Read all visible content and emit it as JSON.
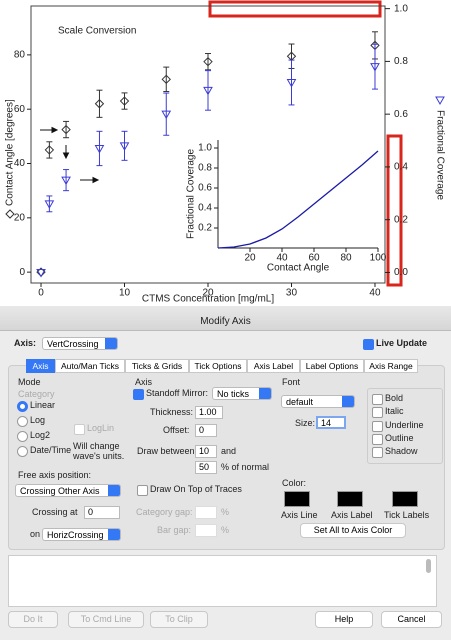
{
  "chart_data": [
    {
      "type": "scatter",
      "annotation": "Scale Conversion",
      "x_label": "CTMS Concentration [mg/mL]",
      "y_label": "Contact Angle [degrees]",
      "y2_label": "Fractional Coverage",
      "xlim": [
        -1.2,
        41.2
      ],
      "xticks": [
        0,
        10,
        20,
        30,
        40
      ],
      "ylim": [
        -4,
        98
      ],
      "yticks": [
        0,
        20,
        40,
        60,
        80
      ],
      "y2lim": [
        -0.04,
        1.01
      ],
      "y2ticks": [
        {
          "value": 0,
          "label": "0.0"
        },
        {
          "value": 0.2,
          "label": "0.2"
        },
        {
          "value": 0.4,
          "label": "0.4"
        },
        {
          "value": 0.6,
          "label": "0.6"
        },
        {
          "value": 0.8,
          "label": "0.8"
        },
        {
          "value": 1,
          "label": "1.0"
        }
      ],
      "series": [
        {
          "color": "#333333",
          "marker": "diamond",
          "x": [
            0,
            1,
            3,
            7,
            10,
            15,
            20,
            30,
            40
          ],
          "values": [
            0,
            45,
            52.5,
            62,
            63,
            71,
            77.5,
            79.5,
            83.5
          ],
          "errors": [
            0,
            3,
            3,
            5,
            3,
            4.5,
            3,
            4.5,
            5
          ]
        },
        {
          "color": "#3b3bd6",
          "marker": "triangle",
          "axis": "y2",
          "x": [
            0,
            1,
            3,
            7,
            10,
            15,
            20,
            30,
            40
          ],
          "values": [
            0,
            0.26,
            0.35,
            0.47,
            0.48,
            0.6,
            0.69,
            0.72,
            0.78
          ],
          "errors": [
            0,
            0.03,
            0.04,
            0.065,
            0.055,
            0.08,
            0.075,
            0.085,
            0.085
          ]
        }
      ]
    },
    {
      "type": "line",
      "x_label": "Contact Angle",
      "y_label": "Fractional Coverage",
      "xlim": [
        0,
        100
      ],
      "xticks": [
        20,
        40,
        60,
        80,
        100
      ],
      "ylim": [
        0,
        1.08
      ],
      "yticks": [
        {
          "value": 0.2,
          "label": "0.2"
        },
        {
          "value": 0.4,
          "label": "0.4"
        },
        {
          "value": 0.6,
          "label": "0.6"
        },
        {
          "value": 0.8,
          "label": "0.8"
        },
        {
          "value": 1,
          "label": "1.0"
        }
      ],
      "color": "#1a1aa6",
      "x": [
        0,
        10,
        20,
        30,
        40,
        50,
        60,
        70,
        80,
        90,
        100
      ],
      "values": [
        0,
        0.01,
        0.04,
        0.1,
        0.19,
        0.31,
        0.44,
        0.57,
        0.7,
        0.83,
        0.97
      ]
    }
  ],
  "dialog": {
    "title": "Modify Axis",
    "axis_label": "Axis:",
    "axis_value": "VertCrossing",
    "live_update": "Live Update",
    "tabs": [
      "Axis",
      "Auto/Man Ticks",
      "Ticks & Grids",
      "Tick Options",
      "Axis Label",
      "Label Options",
      "Axis Range"
    ],
    "mode": {
      "heading": "Mode",
      "category": "Category",
      "options": [
        "Linear",
        "Log",
        "Log2",
        "Date/Time"
      ],
      "loglin": "LogLin",
      "note": "Will change wave's units."
    },
    "axis": {
      "heading": "Axis",
      "standoff": "Standoff",
      "mirror_label": "Mirror:",
      "mirror_value": "No ticks",
      "thickness_label": "Thickness:",
      "thickness": "1.00",
      "offset_label": "Offset:",
      "offset": "0",
      "draw_between_label": "Draw between",
      "draw_from": "10",
      "and": "and",
      "draw_to": "50",
      "percent_normal": "% of normal",
      "draw_on_top": "Draw On Top of Traces",
      "category_gap": "Category gap:",
      "bar_gap": "Bar gap:",
      "percent": "%"
    },
    "font": {
      "heading": "Font",
      "name": "default",
      "size_label": "Size:",
      "size": "14",
      "styles": [
        "Bold",
        "Italic",
        "Underline",
        "Outline",
        "Shadow"
      ]
    },
    "free": {
      "heading": "Free axis position:",
      "mode": "Crossing Other Axis",
      "crossing_label": "Crossing at",
      "crossing": "0",
      "on_label": "on",
      "on": "HorizCrossing"
    },
    "color": {
      "heading": "Color:",
      "items": [
        "Axis Line",
        "Axis Label",
        "Tick Labels"
      ],
      "set_all": "Set All to Axis Color"
    },
    "buttons": [
      "Do It",
      "To Cmd Line",
      "To Clip",
      "Help",
      "Cancel"
    ]
  }
}
